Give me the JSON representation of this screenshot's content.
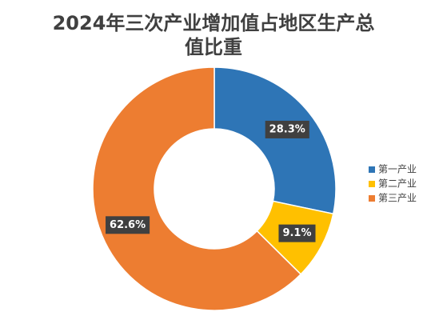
{
  "chart_data": {
    "type": "donut",
    "title": "2024年三次产业增加值占地区生产总值比重",
    "categories": [
      "第一产业",
      "第二产业",
      "第三产业"
    ],
    "values": [
      28.3,
      9.1,
      62.6
    ],
    "value_labels": [
      "28.3%",
      "9.1%",
      "62.6%"
    ],
    "colors": [
      "#2e75b6",
      "#ffc000",
      "#ed7d31"
    ],
    "legend": "right"
  }
}
